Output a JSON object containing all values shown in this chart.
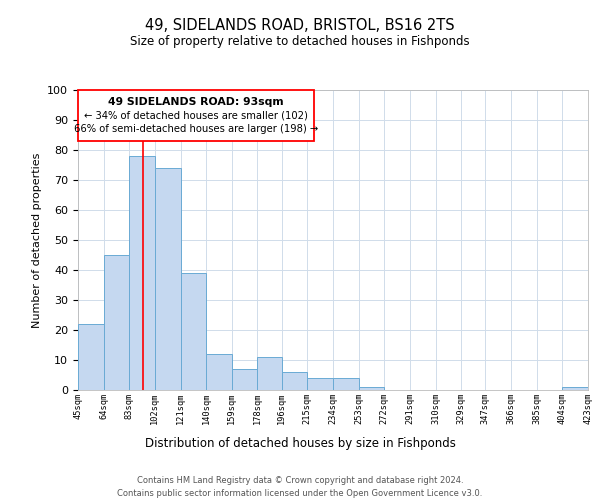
{
  "title": "49, SIDELANDS ROAD, BRISTOL, BS16 2TS",
  "subtitle": "Size of property relative to detached houses in Fishponds",
  "xlabel": "Distribution of detached houses by size in Fishponds",
  "ylabel": "Number of detached properties",
  "bar_color": "#c5d8f0",
  "bar_edge_color": "#6aaad4",
  "bins": [
    45,
    64,
    83,
    102,
    121,
    140,
    159,
    178,
    196,
    215,
    234,
    253,
    272,
    291,
    310,
    329,
    347,
    366,
    385,
    404,
    423
  ],
  "bin_labels": [
    "45sqm",
    "64sqm",
    "83sqm",
    "102sqm",
    "121sqm",
    "140sqm",
    "159sqm",
    "178sqm",
    "196sqm",
    "215sqm",
    "234sqm",
    "253sqm",
    "272sqm",
    "291sqm",
    "310sqm",
    "329sqm",
    "347sqm",
    "366sqm",
    "385sqm",
    "404sqm",
    "423sqm"
  ],
  "counts": [
    22,
    45,
    78,
    74,
    39,
    12,
    7,
    11,
    6,
    4,
    4,
    1,
    0,
    0,
    0,
    0,
    0,
    0,
    0,
    1
  ],
  "ylim": [
    0,
    100
  ],
  "vline_x": 93,
  "annotation_line1": "49 SIDELANDS ROAD: 93sqm",
  "annotation_line2": "← 34% of detached houses are smaller (102)",
  "annotation_line3": "66% of semi-detached houses are larger (198) →",
  "footer_line1": "Contains HM Land Registry data © Crown copyright and database right 2024.",
  "footer_line2": "Contains public sector information licensed under the Open Government Licence v3.0.",
  "background_color": "#ffffff",
  "grid_color": "#d0dcea"
}
